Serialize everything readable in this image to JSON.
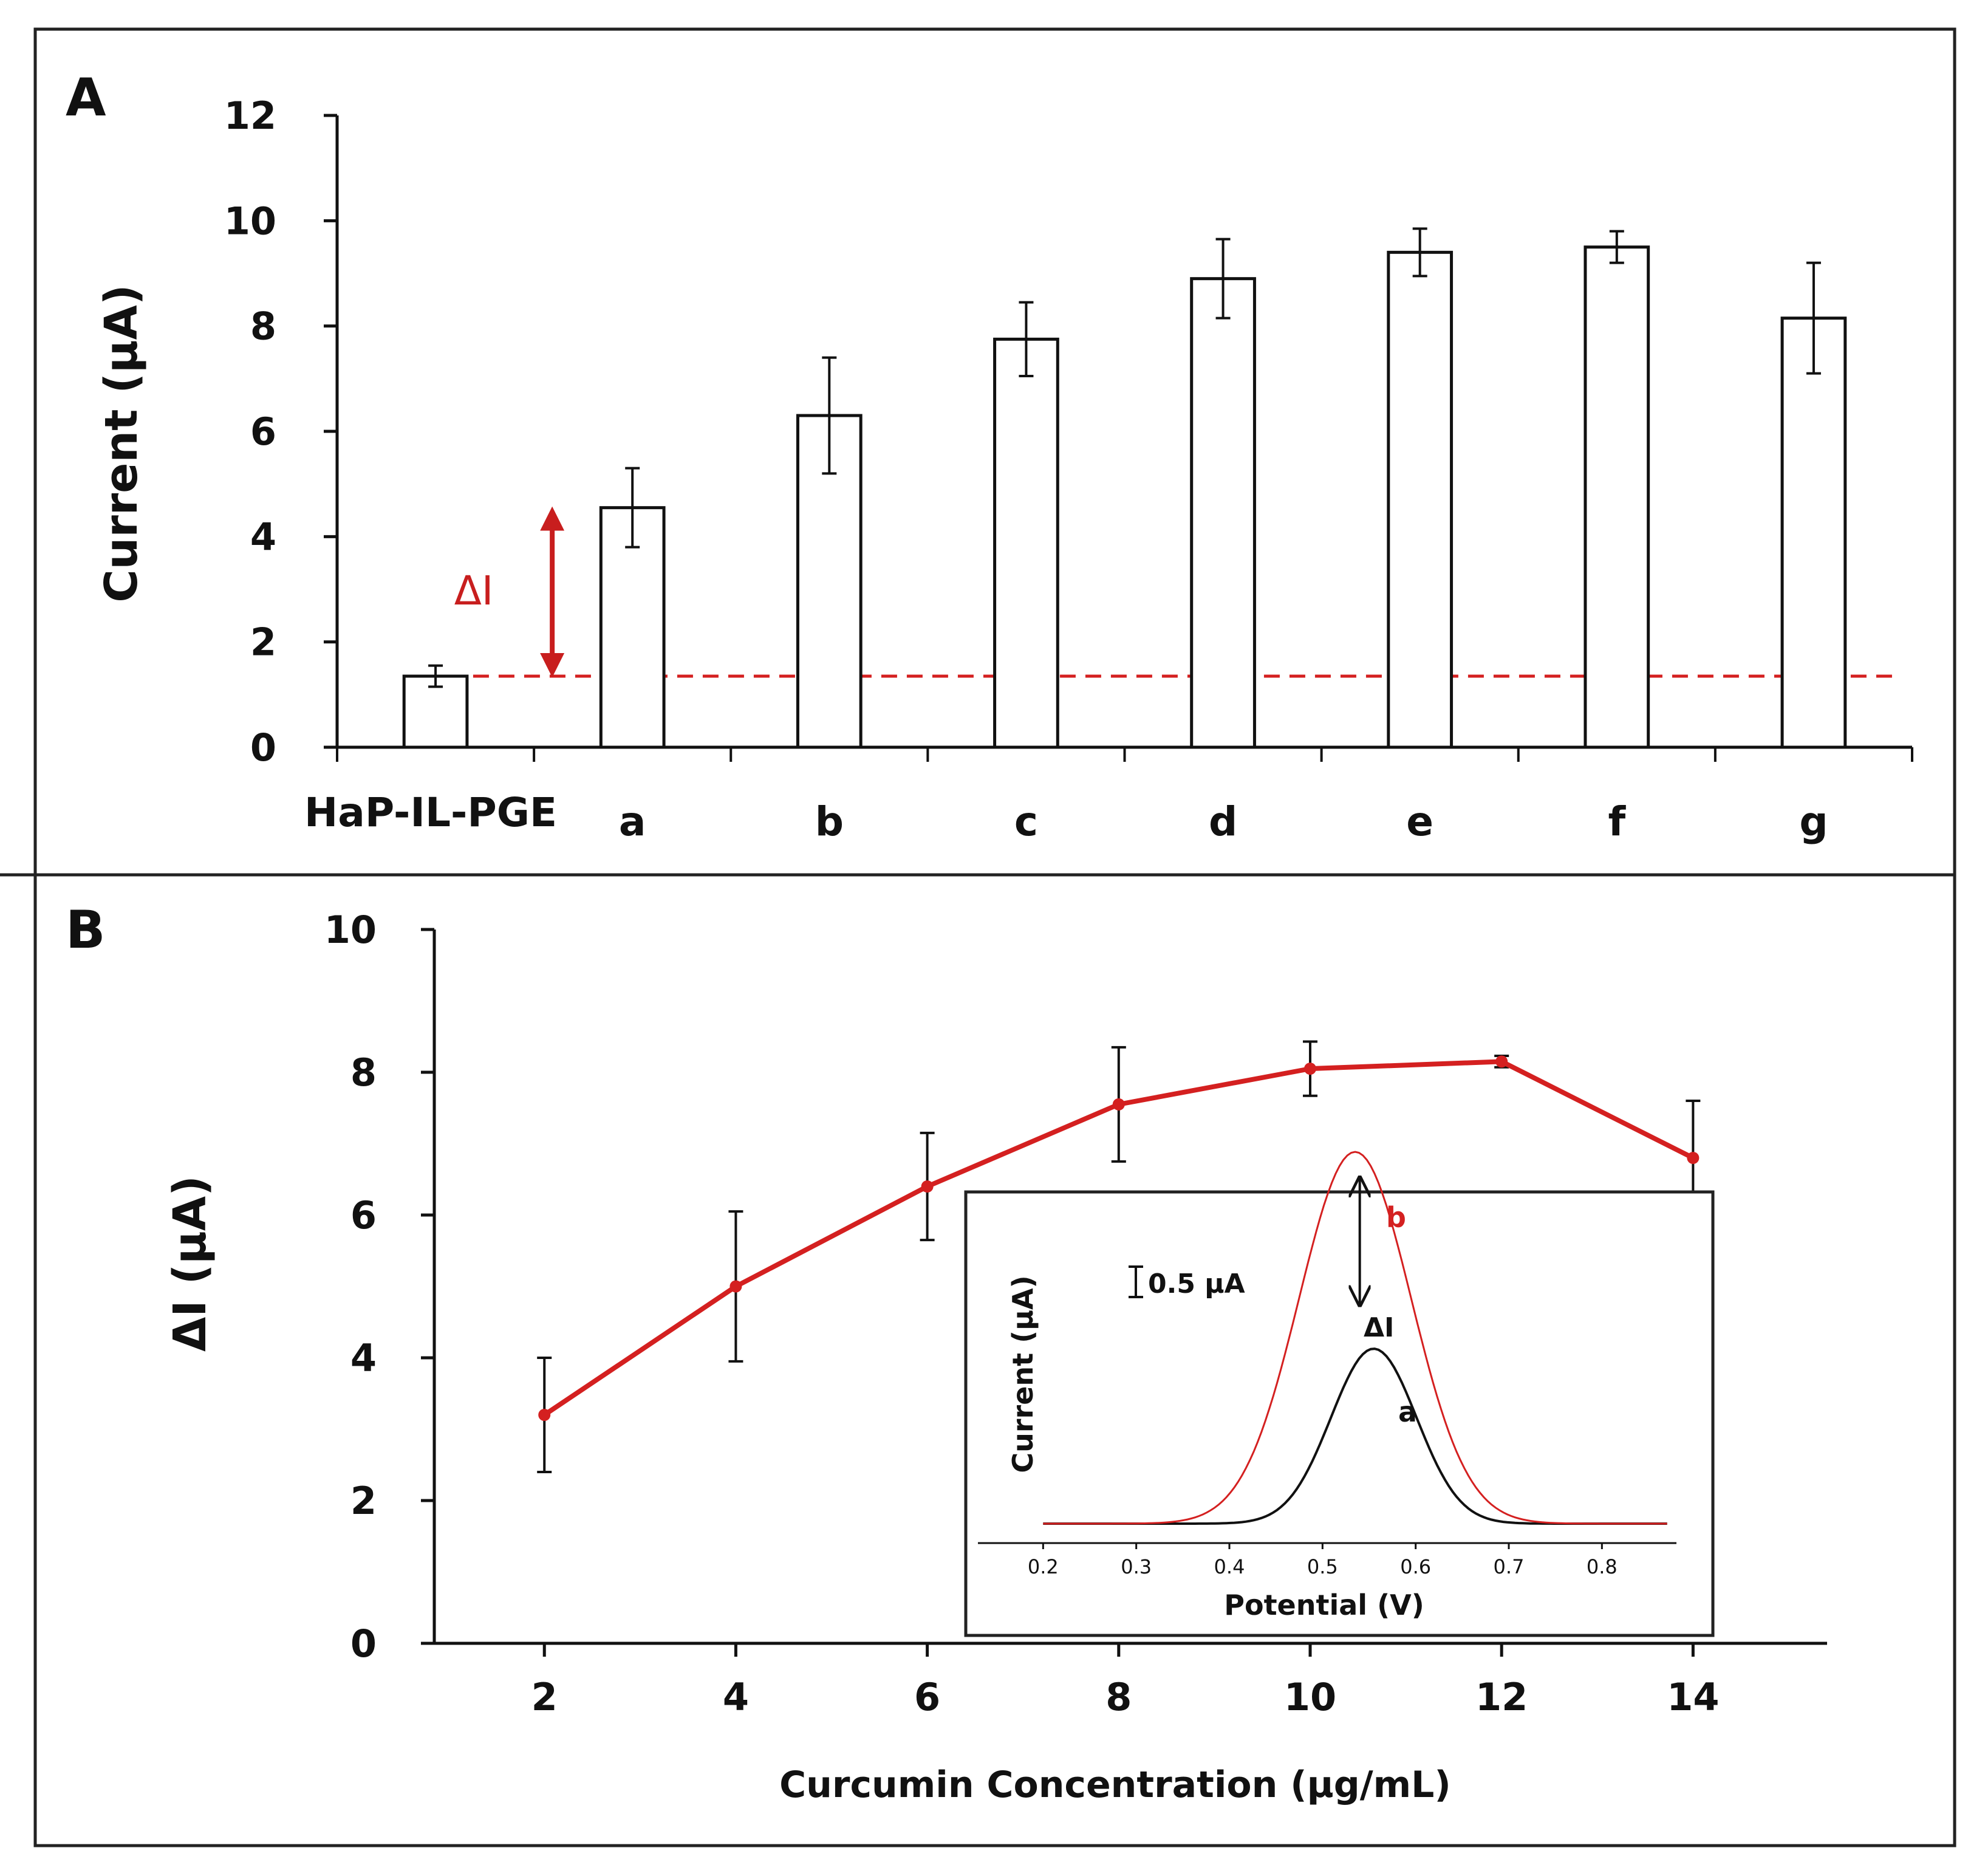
{
  "colors": {
    "accent": "#d42020",
    "axis": "#111111",
    "inset_a": "#111111",
    "inset_b": "#d42020"
  },
  "chart_data": [
    {
      "panel": "A",
      "type": "bar",
      "ylabel": "Current (µA)",
      "ylim": [
        0,
        12
      ],
      "yticks": [
        "0",
        "2",
        "4",
        "6",
        "8",
        "10",
        "12"
      ],
      "categories": [
        "HaP-IL-PGE",
        "a",
        "b",
        "c",
        "d",
        "e",
        "f",
        "g"
      ],
      "values": [
        1.35,
        4.55,
        6.3,
        7.75,
        8.9,
        9.4,
        9.5,
        8.15
      ],
      "errors": [
        0.2,
        0.75,
        1.1,
        0.7,
        0.75,
        0.45,
        0.3,
        1.05
      ],
      "baseline": 1.35,
      "annotation": "ΔI"
    },
    {
      "panel": "B",
      "type": "line",
      "xlabel": "Curcumin Concentration (µg/mL)",
      "ylabel": "ΔI (µA)",
      "xlim": [
        0.85,
        15.4
      ],
      "ylim": [
        0,
        10
      ],
      "xticks": [
        "2",
        "4",
        "6",
        "8",
        "10",
        "12",
        "14"
      ],
      "yticks": [
        "0",
        "2",
        "4",
        "6",
        "8",
        "10"
      ],
      "series": [
        {
          "name": "ΔI",
          "x": [
            2,
            4,
            6,
            8,
            10,
            12,
            14
          ],
          "values": [
            3.2,
            5.0,
            6.4,
            7.55,
            8.05,
            8.15,
            6.8
          ],
          "errors": [
            0.8,
            1.05,
            0.75,
            0.8,
            0.38,
            0.08,
            0.8
          ]
        }
      ],
      "inset": {
        "type": "line",
        "xlabel": "Potential (V)",
        "ylabel": "Current (µA)",
        "xlim": [
          0.13,
          0.88
        ],
        "xticks": [
          "0.2",
          "0.3",
          "0.4",
          "0.5",
          "0.6",
          "0.7",
          "0.8"
        ],
        "scale_bar": "0.5 µA",
        "annotation": "ΔI",
        "series": [
          {
            "name": "a",
            "peak_potential": 0.555,
            "peak_height": 1.6,
            "width": 0.065
          },
          {
            "name": "b",
            "peak_potential": 0.535,
            "peak_height": 3.4,
            "width": 0.085
          }
        ]
      }
    }
  ]
}
